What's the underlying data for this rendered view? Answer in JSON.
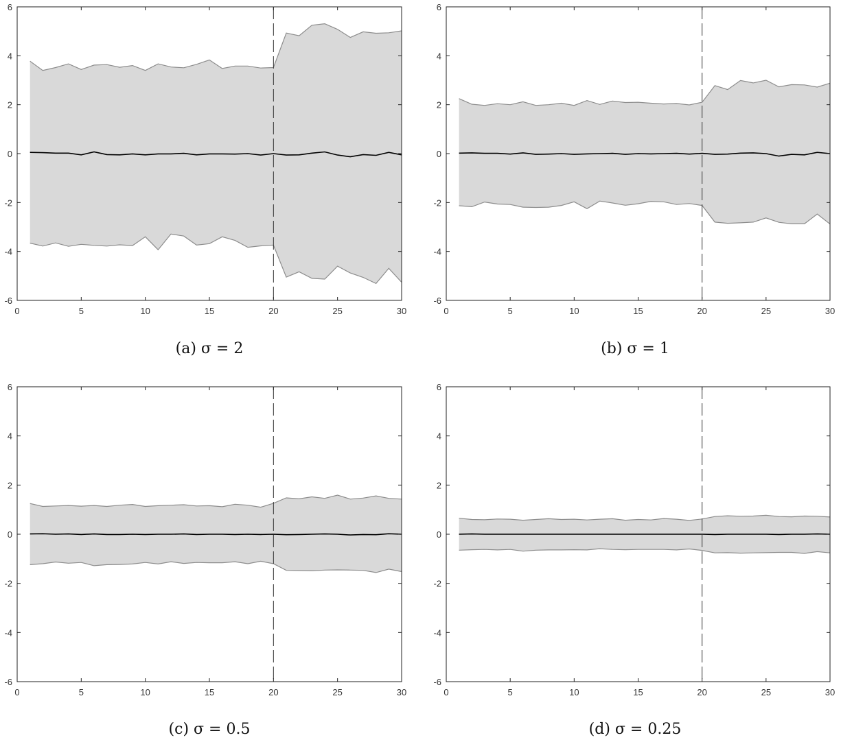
{
  "chart_data": [
    {
      "type": "area",
      "caption": "(a) σ = 2",
      "xlim": [
        0,
        30
      ],
      "ylim": [
        -6,
        6
      ],
      "xticks": [
        "0",
        "5",
        "10",
        "15",
        "20",
        "25",
        "30"
      ],
      "yticks": [
        "6",
        "4",
        "2",
        "0",
        "-2",
        "-4",
        "-6"
      ],
      "change_point_x": 20,
      "x": [
        1,
        2,
        3,
        4,
        5,
        6,
        7,
        8,
        9,
        10,
        11,
        12,
        13,
        14,
        15,
        16,
        17,
        18,
        19,
        20,
        21,
        22,
        23,
        24,
        25,
        26,
        27,
        28,
        29,
        30
      ],
      "series": [
        {
          "role": "upper",
          "values": [
            3.78,
            3.4,
            3.52,
            3.67,
            3.44,
            3.62,
            3.64,
            3.53,
            3.6,
            3.4,
            3.67,
            3.54,
            3.51,
            3.65,
            3.83,
            3.48,
            3.58,
            3.58,
            3.5,
            3.52,
            4.93,
            4.82,
            5.25,
            5.31,
            5.08,
            4.75,
            4.98,
            4.92,
            4.94,
            5.02
          ]
        },
        {
          "role": "mean",
          "values": [
            0.05,
            0.04,
            0.02,
            0.02,
            -0.05,
            0.07,
            -0.04,
            -0.05,
            -0.01,
            -0.05,
            -0.01,
            -0.01,
            0.01,
            -0.05,
            -0.01,
            -0.01,
            -0.02,
            0.0,
            -0.06,
            0.0,
            -0.06,
            -0.05,
            0.02,
            0.07,
            -0.06,
            -0.13,
            -0.04,
            -0.07,
            0.05,
            -0.05
          ]
        },
        {
          "role": "lower",
          "values": [
            -3.66,
            -3.78,
            -3.65,
            -3.79,
            -3.71,
            -3.75,
            -3.78,
            -3.73,
            -3.76,
            -3.4,
            -3.93,
            -3.29,
            -3.37,
            -3.74,
            -3.68,
            -3.4,
            -3.55,
            -3.83,
            -3.77,
            -3.74,
            -5.05,
            -4.83,
            -5.1,
            -5.13,
            -4.6,
            -4.88,
            -5.06,
            -5.31,
            -4.69,
            -5.26
          ]
        }
      ]
    },
    {
      "type": "area",
      "caption": "(b) σ = 1",
      "xlim": [
        0,
        30
      ],
      "ylim": [
        -6,
        6
      ],
      "xticks": [
        "0",
        "5",
        "10",
        "15",
        "20",
        "25",
        "30"
      ],
      "yticks": [
        "6",
        "4",
        "2",
        "0",
        "-2",
        "-4",
        "-6"
      ],
      "change_point_x": 20,
      "x": [
        1,
        2,
        3,
        4,
        5,
        6,
        7,
        8,
        9,
        10,
        11,
        12,
        13,
        14,
        15,
        16,
        17,
        18,
        19,
        20,
        21,
        22,
        23,
        24,
        25,
        26,
        27,
        28,
        29,
        30
      ],
      "series": [
        {
          "role": "upper",
          "values": [
            2.25,
            2.02,
            1.97,
            2.04,
            2.0,
            2.12,
            1.97,
            2.0,
            2.06,
            1.97,
            2.17,
            2.01,
            2.15,
            2.09,
            2.1,
            2.06,
            2.03,
            2.05,
            1.99,
            2.1,
            2.78,
            2.62,
            2.99,
            2.89,
            3.0,
            2.73,
            2.82,
            2.81,
            2.72,
            2.88
          ]
        },
        {
          "role": "mean",
          "values": [
            0.02,
            0.03,
            0.01,
            0.01,
            -0.02,
            0.03,
            -0.03,
            -0.02,
            0.0,
            -0.03,
            -0.01,
            0.0,
            0.01,
            -0.03,
            0.0,
            -0.01,
            0.0,
            0.01,
            -0.02,
            0.01,
            -0.03,
            -0.02,
            0.02,
            0.03,
            0.0,
            -0.1,
            -0.03,
            -0.05,
            0.05,
            0.0
          ]
        },
        {
          "role": "lower",
          "values": [
            -2.13,
            -2.17,
            -1.98,
            -2.06,
            -2.08,
            -2.19,
            -2.2,
            -2.19,
            -2.12,
            -1.97,
            -2.25,
            -1.94,
            -2.02,
            -2.11,
            -2.05,
            -1.95,
            -1.97,
            -2.08,
            -2.04,
            -2.12,
            -2.8,
            -2.85,
            -2.83,
            -2.8,
            -2.63,
            -2.81,
            -2.87,
            -2.87,
            -2.47,
            -2.88
          ]
        }
      ]
    },
    {
      "type": "area",
      "caption": "(c) σ = 0.5",
      "xlim": [
        0,
        30
      ],
      "ylim": [
        -6,
        6
      ],
      "xticks": [
        "0",
        "5",
        "10",
        "15",
        "20",
        "25",
        "30"
      ],
      "yticks": [
        "6",
        "4",
        "2",
        "0",
        "-2",
        "-4",
        "-6"
      ],
      "change_point_x": 20,
      "x": [
        1,
        2,
        3,
        4,
        5,
        6,
        7,
        8,
        9,
        10,
        11,
        12,
        13,
        14,
        15,
        16,
        17,
        18,
        19,
        20,
        21,
        22,
        23,
        24,
        25,
        26,
        27,
        28,
        29,
        30
      ],
      "series": [
        {
          "role": "upper",
          "values": [
            1.25,
            1.13,
            1.15,
            1.17,
            1.14,
            1.17,
            1.13,
            1.18,
            1.21,
            1.13,
            1.16,
            1.18,
            1.2,
            1.15,
            1.16,
            1.12,
            1.22,
            1.18,
            1.1,
            1.26,
            1.48,
            1.44,
            1.52,
            1.46,
            1.59,
            1.43,
            1.47,
            1.56,
            1.46,
            1.43
          ]
        },
        {
          "role": "mean",
          "values": [
            0.01,
            0.02,
            0.0,
            0.01,
            -0.01,
            0.01,
            -0.01,
            -0.01,
            0.0,
            -0.01,
            0.0,
            0.0,
            0.01,
            -0.01,
            0.0,
            0.0,
            -0.01,
            0.0,
            -0.01,
            0.0,
            -0.02,
            -0.01,
            0.0,
            0.01,
            0.0,
            -0.03,
            -0.01,
            -0.02,
            0.02,
            0.0
          ]
        },
        {
          "role": "lower",
          "values": [
            -1.24,
            -1.2,
            -1.13,
            -1.18,
            -1.15,
            -1.28,
            -1.24,
            -1.23,
            -1.21,
            -1.15,
            -1.21,
            -1.12,
            -1.19,
            -1.15,
            -1.16,
            -1.16,
            -1.12,
            -1.2,
            -1.1,
            -1.2,
            -1.47,
            -1.48,
            -1.49,
            -1.46,
            -1.45,
            -1.46,
            -1.47,
            -1.56,
            -1.42,
            -1.52
          ]
        }
      ]
    },
    {
      "type": "area",
      "caption": "(d) σ = 0.25",
      "xlim": [
        0,
        30
      ],
      "ylim": [
        -6,
        6
      ],
      "xticks": [
        "0",
        "5",
        "10",
        "15",
        "20",
        "25",
        "30"
      ],
      "yticks": [
        "6",
        "4",
        "2",
        "0",
        "-2",
        "-4",
        "-6"
      ],
      "change_point_x": 20,
      "x": [
        1,
        2,
        3,
        4,
        5,
        6,
        7,
        8,
        9,
        10,
        11,
        12,
        13,
        14,
        15,
        16,
        17,
        18,
        19,
        20,
        21,
        22,
        23,
        24,
        25,
        26,
        27,
        28,
        29,
        30
      ],
      "series": [
        {
          "role": "upper",
          "values": [
            0.65,
            0.6,
            0.59,
            0.62,
            0.61,
            0.57,
            0.6,
            0.63,
            0.6,
            0.61,
            0.58,
            0.61,
            0.63,
            0.57,
            0.6,
            0.58,
            0.64,
            0.61,
            0.56,
            0.62,
            0.72,
            0.75,
            0.73,
            0.74,
            0.77,
            0.72,
            0.71,
            0.74,
            0.73,
            0.7
          ]
        },
        {
          "role": "mean",
          "values": [
            0.0,
            0.01,
            0.0,
            0.0,
            0.0,
            0.0,
            0.0,
            0.0,
            0.0,
            0.0,
            0.0,
            0.0,
            0.0,
            0.0,
            0.0,
            0.0,
            0.0,
            0.0,
            0.0,
            0.0,
            -0.01,
            0.0,
            0.0,
            0.0,
            0.0,
            -0.01,
            0.0,
            0.0,
            0.01,
            0.0
          ]
        },
        {
          "role": "lower",
          "values": [
            -0.65,
            -0.63,
            -0.62,
            -0.64,
            -0.62,
            -0.69,
            -0.65,
            -0.64,
            -0.64,
            -0.63,
            -0.64,
            -0.59,
            -0.62,
            -0.63,
            -0.62,
            -0.62,
            -0.62,
            -0.64,
            -0.6,
            -0.66,
            -0.76,
            -0.75,
            -0.77,
            -0.76,
            -0.75,
            -0.74,
            -0.74,
            -0.78,
            -0.71,
            -0.76
          ]
        }
      ]
    }
  ]
}
